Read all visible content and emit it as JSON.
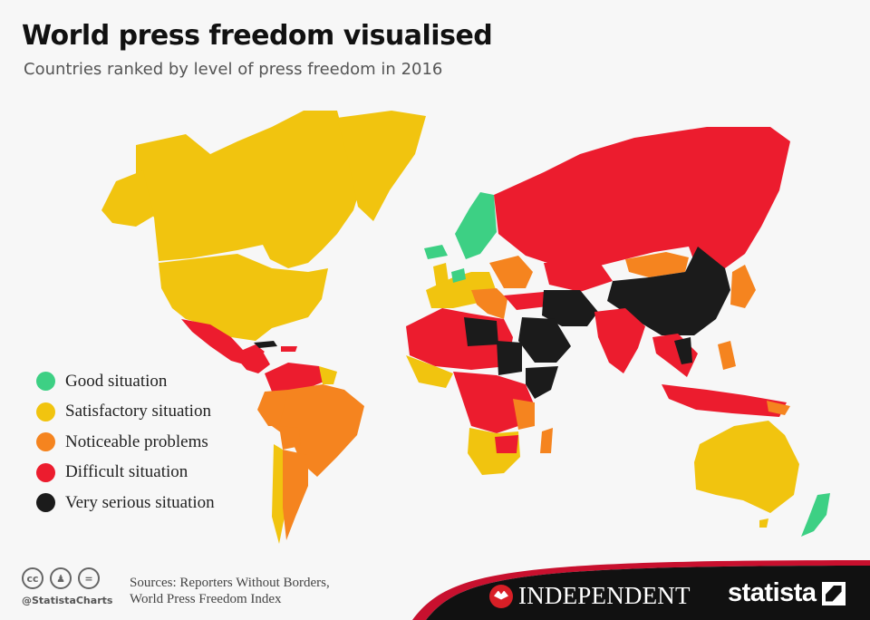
{
  "header": {
    "title": "World press freedom visualised",
    "subtitle": "Countries ranked by level of press freedom in 2016"
  },
  "legend": [
    {
      "label": "Good situation",
      "color": "#3dd084"
    },
    {
      "label": "Satisfactory situation",
      "color": "#f1c40f"
    },
    {
      "label": "Noticeable problems",
      "color": "#f5841f"
    },
    {
      "label": "Difficult situation",
      "color": "#ec1c2e"
    },
    {
      "label": "Very serious situation",
      "color": "#1b1b1b"
    }
  ],
  "footer": {
    "handle": "@StatistaCharts",
    "sources_line1": "Sources: Reporters Without Borders,",
    "sources_line2": "World Press Freedom Index",
    "independent_label": "INDEPENDENT",
    "statista_label": "statista",
    "cc_icons": [
      "cc-icon",
      "by-icon",
      "nd-icon"
    ]
  },
  "colors": {
    "band": "#111111",
    "band_accent": "#c8102e",
    "background": "#f7f7f7"
  }
}
